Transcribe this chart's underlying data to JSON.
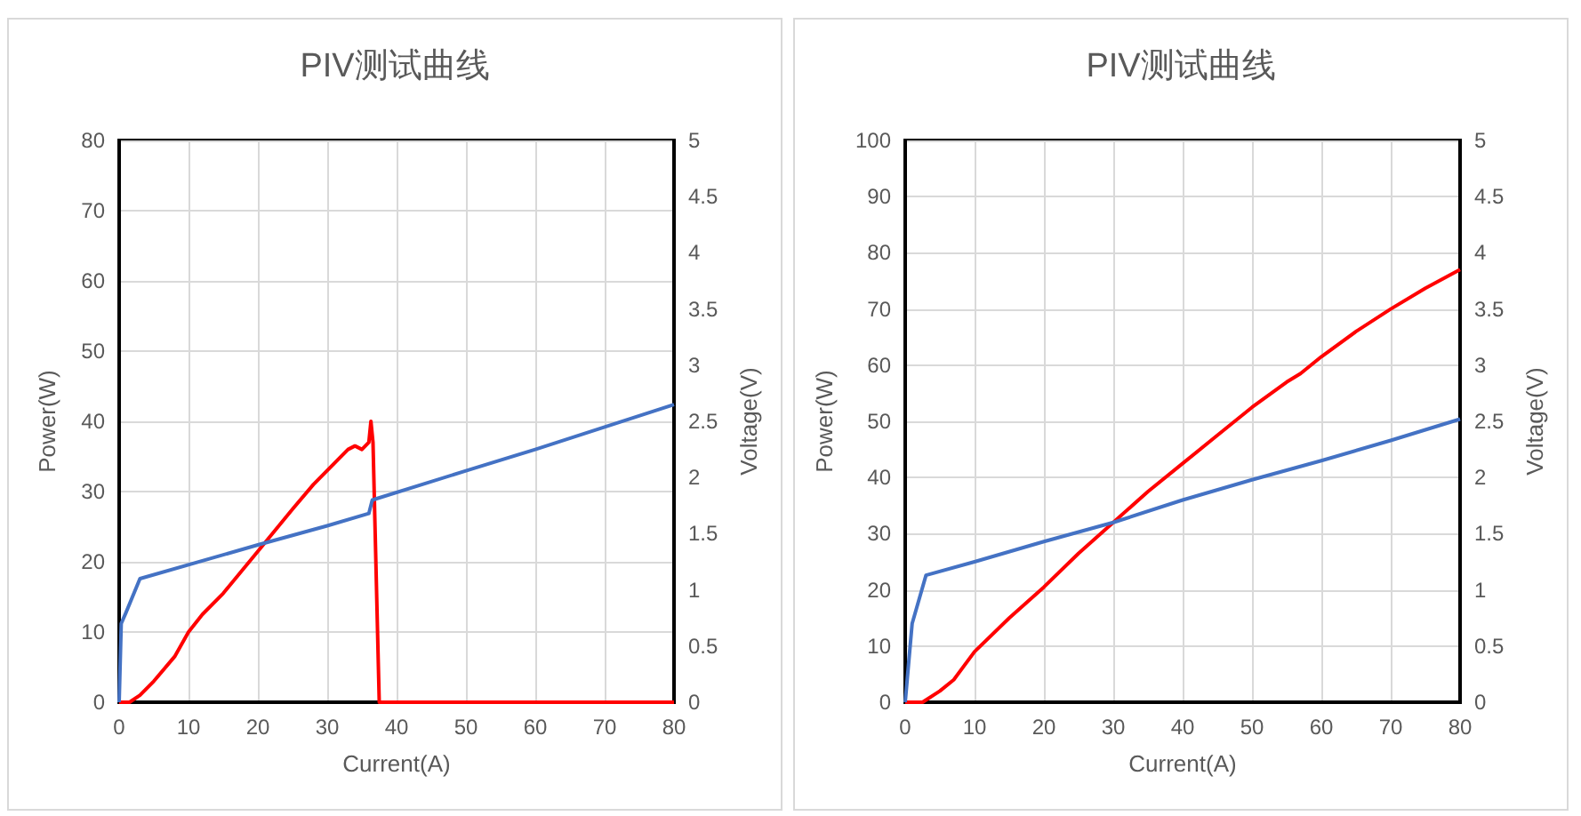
{
  "chart_data": [
    {
      "type": "line",
      "title": "PIV测试曲线",
      "xlabel": "Current(A)",
      "ylabel": "Power(W)",
      "y2label": "Voltage(V)",
      "xlim": [
        0,
        80
      ],
      "xticks": [
        0,
        10,
        20,
        30,
        40,
        50,
        60,
        70,
        80
      ],
      "ylim": [
        0,
        80
      ],
      "yticks": [
        0,
        10,
        20,
        30,
        40,
        50,
        60,
        70,
        80
      ],
      "y2lim": [
        0,
        5
      ],
      "y2ticks": [
        0,
        0.5,
        1,
        1.5,
        2,
        2.5,
        3,
        3.5,
        4,
        4.5,
        5
      ],
      "grid": true,
      "series": [
        {
          "color": "#ff0000",
          "x": [
            0,
            1.5,
            3,
            5,
            8,
            10,
            12,
            15,
            20,
            25,
            28,
            33,
            34,
            35,
            36,
            36.3,
            36.6,
            37.5,
            80
          ],
          "values": [
            0,
            0,
            1,
            3,
            6.5,
            10,
            12.5,
            15.5,
            21.5,
            27.5,
            31,
            36,
            36.5,
            36,
            37,
            40,
            37,
            0,
            0
          ]
        },
        {
          "color": "#4472c4",
          "axis": "y2",
          "x": [
            0,
            0.3,
            1,
            3,
            20,
            30,
            36,
            36.5,
            50,
            60,
            70,
            80
          ],
          "values": [
            0,
            0.7,
            0.8,
            1.1,
            1.4,
            1.57,
            1.68,
            1.8,
            2.06,
            2.25,
            2.45,
            2.65
          ]
        }
      ]
    },
    {
      "type": "line",
      "title": "PIV测试曲线",
      "xlabel": "Current(A)",
      "ylabel": "Power(W)",
      "y2label": "Voltage(V)",
      "xlim": [
        0,
        80
      ],
      "xticks": [
        0,
        10,
        20,
        30,
        40,
        50,
        60,
        70,
        80
      ],
      "ylim": [
        0,
        100
      ],
      "yticks": [
        0,
        10,
        20,
        30,
        40,
        50,
        60,
        70,
        80,
        90,
        100
      ],
      "y2lim": [
        0,
        5
      ],
      "y2ticks": [
        0,
        0.5,
        1,
        1.5,
        2,
        2.5,
        3,
        3.5,
        4,
        4.5,
        5
      ],
      "grid": true,
      "series": [
        {
          "color": "#ff0000",
          "x": [
            0,
            2.5,
            5,
            7,
            10,
            15,
            20,
            25,
            30,
            35,
            40,
            45,
            50,
            55,
            57,
            60,
            65,
            70,
            75,
            80
          ],
          "values": [
            0,
            0,
            2,
            4,
            9,
            15,
            20.5,
            26.5,
            32,
            37.5,
            42.5,
            47.5,
            52.5,
            57,
            58.5,
            61.5,
            66,
            70,
            73.7,
            77
          ]
        },
        {
          "color": "#4472c4",
          "axis": "y2",
          "x": [
            0,
            1,
            3,
            10,
            20,
            30,
            40,
            50,
            60,
            70,
            80
          ],
          "values": [
            0,
            0.7,
            1.13,
            1.25,
            1.43,
            1.6,
            1.8,
            1.98,
            2.15,
            2.33,
            2.52
          ]
        }
      ]
    }
  ]
}
